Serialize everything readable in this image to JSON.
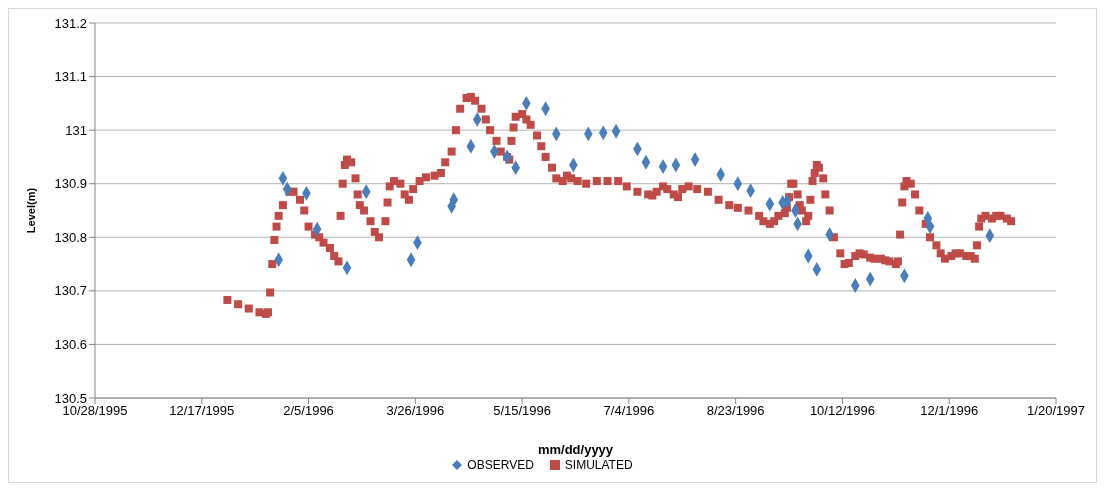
{
  "chart_data": {
    "type": "scatter",
    "xlabel": "mm/dd/yyyy",
    "ylabel": "Level(m)",
    "xlim": [
      "1995-10-28",
      "1997-01-20"
    ],
    "xticks": [
      {
        "value": "1995-10-28",
        "label": "10/28/1995"
      },
      {
        "value": "1995-12-17",
        "label": "12/17/1995"
      },
      {
        "value": "1996-02-05",
        "label": "2/5/1996"
      },
      {
        "value": "1996-03-26",
        "label": "3/26/1996"
      },
      {
        "value": "1996-05-15",
        "label": "5/15/1996"
      },
      {
        "value": "1996-07-04",
        "label": "7/4/1996"
      },
      {
        "value": "1996-08-23",
        "label": "8/23/1996"
      },
      {
        "value": "1996-10-12",
        "label": "10/12/1996"
      },
      {
        "value": "1996-12-01",
        "label": "12/1/1996"
      },
      {
        "value": "1997-01-20",
        "label": "1/20/1997"
      }
    ],
    "ylim": [
      130.5,
      131.2
    ],
    "yticks": [
      130.5,
      130.6,
      130.7,
      130.8,
      130.9,
      131,
      131.1,
      131.2
    ],
    "grid": "y",
    "legend": "bottom",
    "series": [
      {
        "name": "OBSERVED",
        "color": "#4a7ebb",
        "marker": "diamond",
        "x": [
          "1996-01-22",
          "1996-01-24",
          "1996-01-26",
          "1996-02-04",
          "1996-02-09",
          "1996-02-23",
          "1996-03-03",
          "1996-03-24",
          "1996-03-27",
          "1996-04-12",
          "1996-04-13",
          "1996-04-21",
          "1996-04-24",
          "1996-05-02",
          "1996-05-08",
          "1996-05-12",
          "1996-05-17",
          "1996-05-26",
          "1996-05-31",
          "1996-06-08",
          "1996-06-15",
          "1996-06-22",
          "1996-06-28",
          "1996-07-08",
          "1996-07-12",
          "1996-07-20",
          "1996-07-26",
          "1996-08-04",
          "1996-08-16",
          "1996-08-24",
          "1996-08-30",
          "1996-09-08",
          "1996-09-14",
          "1996-09-16",
          "1996-09-20",
          "1996-09-21",
          "1996-09-26",
          "1996-09-30",
          "1996-10-06",
          "1996-10-18",
          "1996-10-25",
          "1996-11-10",
          "1996-11-21",
          "1996-11-22",
          "1996-12-20"
        ],
        "values": [
          130.758,
          130.91,
          130.89,
          130.882,
          130.815,
          130.743,
          130.885,
          130.758,
          130.79,
          130.858,
          130.87,
          130.97,
          131.02,
          130.96,
          130.95,
          130.93,
          131.05,
          131.04,
          130.993,
          130.935,
          130.993,
          130.995,
          130.998,
          130.965,
          130.94,
          130.932,
          130.935,
          130.945,
          130.917,
          130.9,
          130.887,
          130.862,
          130.865,
          130.867,
          130.85,
          130.825,
          130.765,
          130.74,
          130.805,
          130.71,
          130.722,
          130.728,
          130.835,
          130.82,
          130.803
        ]
      },
      {
        "name": "SIMULATED",
        "color": "#be4b48",
        "marker": "square",
        "x": [
          "1995-12-29",
          "1996-01-03",
          "1996-01-08",
          "1996-01-13",
          "1996-01-16",
          "1996-01-17",
          "1996-01-18",
          "1996-01-19",
          "1996-01-20",
          "1996-01-21",
          "1996-01-22",
          "1996-01-24",
          "1996-01-27",
          "1996-01-29",
          "1996-02-01",
          "1996-02-03",
          "1996-02-05",
          "1996-02-08",
          "1996-02-10",
          "1996-02-12",
          "1996-02-15",
          "1996-02-17",
          "1996-02-19",
          "1996-02-20",
          "1996-02-21",
          "1996-02-22",
          "1996-02-23",
          "1996-02-25",
          "1996-02-27",
          "1996-02-28",
          "1996-02-29",
          "1996-03-02",
          "1996-03-05",
          "1996-03-07",
          "1996-03-09",
          "1996-03-12",
          "1996-03-13",
          "1996-03-14",
          "1996-03-16",
          "1996-03-19",
          "1996-03-21",
          "1996-03-23",
          "1996-03-25",
          "1996-03-28",
          "1996-03-31",
          "1996-04-04",
          "1996-04-07",
          "1996-04-09",
          "1996-04-12",
          "1996-04-14",
          "1996-04-16",
          "1996-04-19",
          "1996-04-21",
          "1996-04-23",
          "1996-04-26",
          "1996-04-28",
          "1996-04-30",
          "1996-05-03",
          "1996-05-05",
          "1996-05-08",
          "1996-05-09",
          "1996-05-10",
          "1996-05-11",
          "1996-05-12",
          "1996-05-15",
          "1996-05-17",
          "1996-05-19",
          "1996-05-22",
          "1996-05-24",
          "1996-05-26",
          "1996-05-29",
          "1996-05-31",
          "1996-06-03",
          "1996-06-05",
          "1996-06-07",
          "1996-06-10",
          "1996-06-14",
          "1996-06-19",
          "1996-06-24",
          "1996-06-29",
          "1996-07-03",
          "1996-07-08",
          "1996-07-13",
          "1996-07-15",
          "1996-07-17",
          "1996-07-20",
          "1996-07-22",
          "1996-07-25",
          "1996-07-27",
          "1996-07-29",
          "1996-08-01",
          "1996-08-05",
          "1996-08-10",
          "1996-08-15",
          "1996-08-20",
          "1996-08-24",
          "1996-08-29",
          "1996-09-03",
          "1996-09-05",
          "1996-09-08",
          "1996-09-10",
          "1996-09-12",
          "1996-09-15",
          "1996-09-16",
          "1996-09-17",
          "1996-09-18",
          "1996-09-19",
          "1996-09-21",
          "1996-09-22",
          "1996-09-23",
          "1996-09-25",
          "1996-09-26",
          "1996-09-27",
          "1996-09-28",
          "1996-09-29",
          "1996-09-30",
          "1996-10-01",
          "1996-10-03",
          "1996-10-04",
          "1996-10-06",
          "1996-10-08",
          "1996-10-11",
          "1996-10-13",
          "1996-10-15",
          "1996-10-18",
          "1996-10-20",
          "1996-10-22",
          "1996-10-25",
          "1996-10-27",
          "1996-10-30",
          "1996-11-01",
          "1996-11-03",
          "1996-11-06",
          "1996-11-07",
          "1996-11-08",
          "1996-11-09",
          "1996-11-10",
          "1996-11-11",
          "1996-11-13",
          "1996-11-15",
          "1996-11-17",
          "1996-11-20",
          "1996-11-22",
          "1996-11-25",
          "1996-11-27",
          "1996-11-29",
          "1996-12-02",
          "1996-12-04",
          "1996-12-06",
          "1996-12-09",
          "1996-12-11",
          "1996-12-13",
          "1996-12-14",
          "1996-12-15",
          "1996-12-16",
          "1996-12-18",
          "1996-12-21",
          "1996-12-23",
          "1996-12-25",
          "1996-12-28",
          "1996-12-30"
        ],
        "values": [
          130.683,
          130.675,
          130.667,
          130.66,
          130.657,
          130.66,
          130.697,
          130.75,
          130.795,
          130.82,
          130.84,
          130.86,
          130.885,
          130.885,
          130.87,
          130.85,
          130.82,
          130.805,
          130.8,
          130.79,
          130.78,
          130.765,
          130.755,
          130.84,
          130.9,
          130.935,
          130.945,
          130.94,
          130.91,
          130.88,
          130.86,
          130.85,
          130.83,
          130.81,
          130.8,
          130.83,
          130.865,
          130.895,
          130.905,
          130.9,
          130.88,
          130.87,
          130.89,
          130.905,
          130.912,
          130.915,
          130.92,
          130.94,
          130.96,
          131.0,
          131.04,
          131.06,
          131.062,
          131.055,
          131.04,
          131.02,
          131.0,
          130.98,
          130.96,
          130.95,
          130.945,
          130.98,
          131.005,
          131.025,
          131.03,
          131.02,
          131.01,
          130.99,
          130.97,
          130.95,
          130.93,
          130.91,
          130.905,
          130.915,
          130.91,
          130.905,
          130.9,
          130.905,
          130.905,
          130.905,
          130.895,
          130.885,
          130.88,
          130.878,
          130.885,
          130.895,
          130.89,
          130.88,
          130.875,
          130.89,
          130.895,
          130.89,
          130.885,
          130.87,
          130.86,
          130.855,
          130.85,
          130.84,
          130.83,
          130.825,
          130.83,
          130.84,
          130.845,
          130.855,
          130.875,
          130.9,
          130.9,
          130.88,
          130.86,
          130.85,
          130.83,
          130.84,
          130.87,
          130.905,
          130.92,
          130.935,
          130.93,
          130.91,
          130.88,
          130.85,
          130.8,
          130.77,
          130.75,
          130.752,
          130.765,
          130.77,
          130.768,
          130.762,
          130.76,
          130.76,
          130.757,
          130.755,
          130.75,
          130.755,
          130.805,
          130.865,
          130.895,
          130.905,
          130.9,
          130.88,
          130.85,
          130.825,
          130.8,
          130.785,
          130.77,
          130.76,
          130.765,
          130.77,
          130.77,
          130.765,
          130.765,
          130.76,
          130.785,
          130.82,
          130.835,
          130.84,
          130.835,
          130.84,
          130.84,
          130.835,
          130.83
        ]
      }
    ]
  }
}
